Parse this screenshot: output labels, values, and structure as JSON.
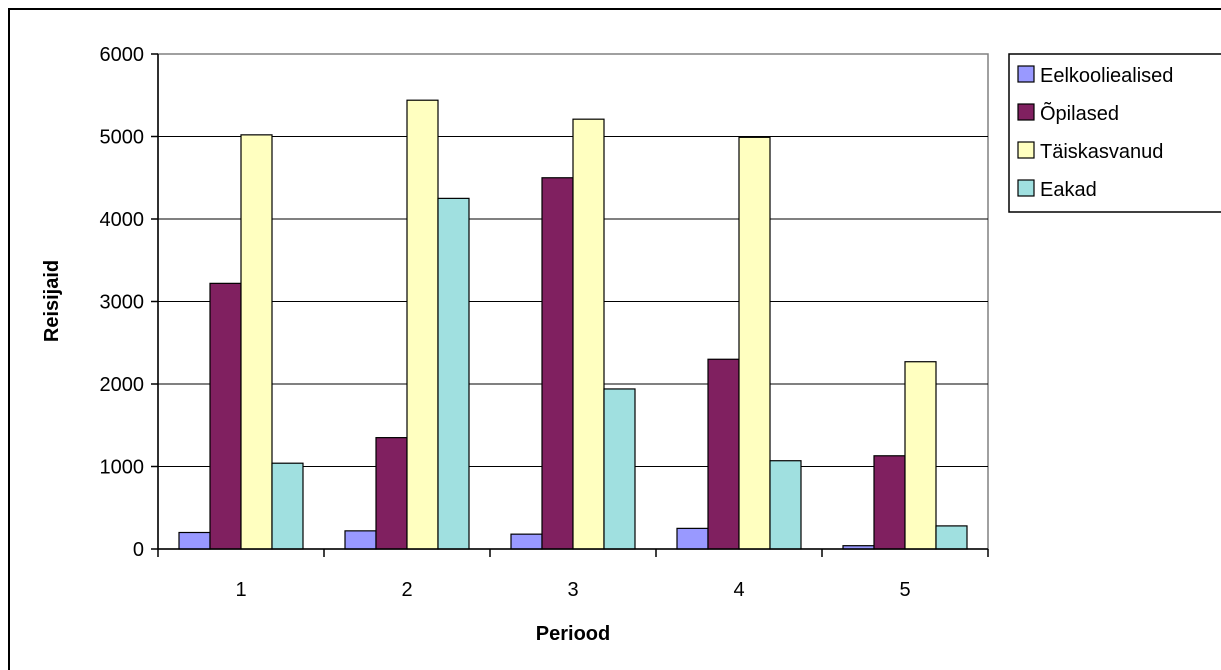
{
  "chart_data": {
    "type": "bar",
    "title": "",
    "xlabel": "Periood",
    "ylabel": "Reisijaid",
    "categories": [
      "1",
      "2",
      "3",
      "4",
      "5"
    ],
    "ylim": [
      0,
      6000
    ],
    "yticks": [
      "0",
      "1000",
      "2000",
      "3000",
      "4000",
      "5000",
      "6000"
    ],
    "grid": true,
    "legend_position": "right",
    "series": [
      {
        "name": "Eelkooliealised",
        "color": "#9999ff",
        "values": [
          200,
          220,
          180,
          250,
          40
        ]
      },
      {
        "name": "Õpilased",
        "color": "#802060",
        "values": [
          3220,
          1350,
          4500,
          2300,
          1130
        ]
      },
      {
        "name": "Täiskasvanud",
        "color": "#ffffc0",
        "values": [
          5020,
          5440,
          5210,
          4990,
          2270
        ]
      },
      {
        "name": "Eakad",
        "color": "#a0e0e0",
        "values": [
          1040,
          4250,
          1940,
          1070,
          280
        ]
      }
    ]
  }
}
